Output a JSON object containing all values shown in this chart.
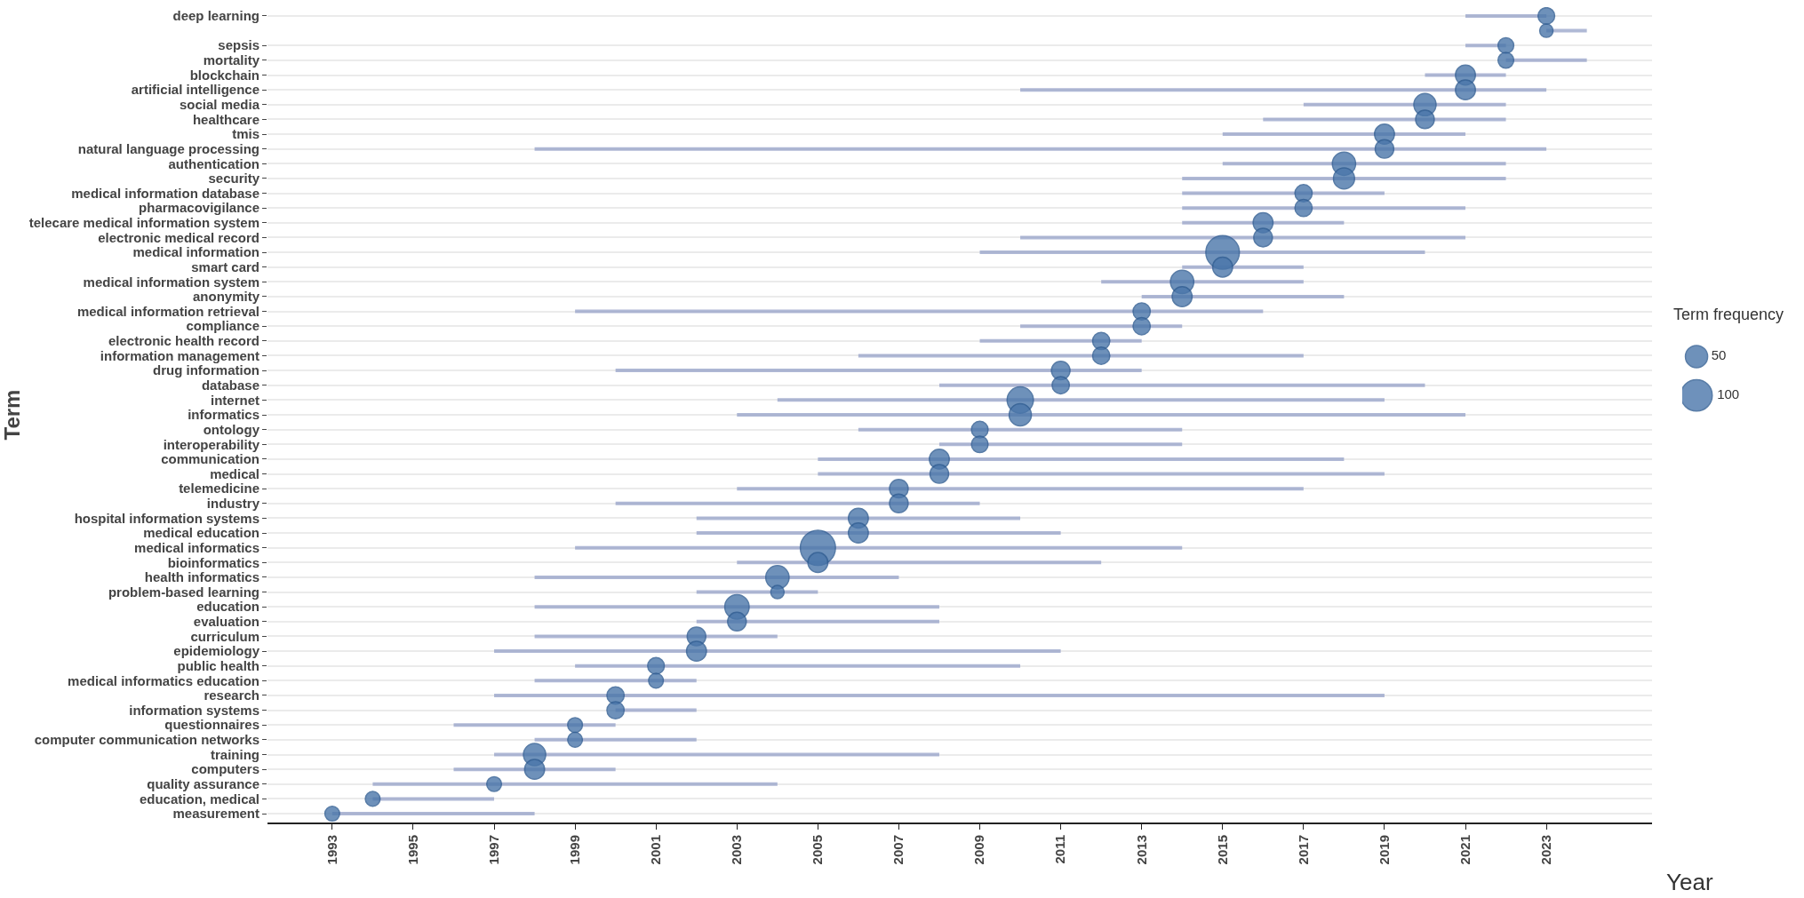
{
  "chart_data": {
    "type": "bubble",
    "orientation": "horizontal",
    "xlabel": "Year",
    "ylabel": "Term",
    "legend_title": "Term frequency",
    "grid": "y",
    "color": "#4a76aa",
    "categories": [
      "deep learning",
      null,
      "sepsis",
      "mortality",
      "blockchain",
      "artificial intelligence",
      "social media",
      "healthcare",
      "tmis",
      "natural language processing",
      "authentication",
      "security",
      "medical information database",
      "pharmacovigilance",
      "telecare medical information system",
      "electronic medical record",
      "medical information",
      "smart card",
      "medical information system",
      "anonymity",
      "medical information retrieval",
      "compliance",
      "electronic health record",
      "information management",
      "drug information",
      "database",
      "internet",
      "informatics",
      "ontology",
      "interoperability",
      "communication",
      "medical",
      "telemedicine",
      "industry",
      "hospital information systems",
      "medical education",
      "medical informatics",
      "bioinformatics",
      "health informatics",
      "problem-based learning",
      "education",
      "evaluation",
      "curriculum",
      "epidemiology",
      "public health",
      "medical informatics education",
      "research",
      "information systems",
      "questionnaires",
      "computer communication networks",
      "training",
      "computers",
      "quality assurance",
      "education, medical",
      "measurement"
    ],
    "values": [
      2023,
      2023,
      2022,
      2022,
      2021,
      2021,
      2020,
      2020,
      2019,
      2019,
      2018,
      2018,
      2017,
      2017,
      2016,
      2016,
      2015,
      2015,
      2014,
      2014,
      2013,
      2013,
      2012,
      2012,
      2011,
      2011,
      2010,
      2010,
      2009,
      2009,
      2008,
      2008,
      2007,
      2007,
      2006,
      2006,
      2005,
      2005,
      2004,
      2004,
      2003,
      2003,
      2002,
      2002,
      2001,
      2001,
      2000,
      2000,
      1999,
      1999,
      1998,
      1998,
      1997,
      1994,
      1993
    ],
    "errors": [
      [
        2021,
        2023
      ],
      [
        2023,
        2024
      ],
      [
        2021,
        2022
      ],
      [
        2022,
        2024
      ],
      [
        2020,
        2022
      ],
      [
        2010,
        2023
      ],
      [
        2017,
        2022
      ],
      [
        2016,
        2022
      ],
      [
        2015,
        2021
      ],
      [
        1998,
        2023
      ],
      [
        2015,
        2022
      ],
      [
        2014,
        2022
      ],
      [
        2014,
        2019
      ],
      [
        2014,
        2021
      ],
      [
        2014,
        2018
      ],
      [
        2010,
        2021
      ],
      [
        2009,
        2020
      ],
      [
        2014,
        2017
      ],
      [
        2012,
        2017
      ],
      [
        2013,
        2018
      ],
      [
        1999,
        2016
      ],
      [
        2010,
        2014
      ],
      [
        2009,
        2013
      ],
      [
        2006,
        2017
      ],
      [
        2000,
        2013
      ],
      [
        2008,
        2020
      ],
      [
        2004,
        2019
      ],
      [
        2003,
        2021
      ],
      [
        2006,
        2014
      ],
      [
        2008,
        2014
      ],
      [
        2005,
        2018
      ],
      [
        2005,
        2019
      ],
      [
        2003,
        2017
      ],
      [
        2000,
        2009
      ],
      [
        2002,
        2010
      ],
      [
        2002,
        2011
      ],
      [
        1999,
        2014
      ],
      [
        2003,
        2012
      ],
      [
        1998,
        2007
      ],
      [
        2002,
        2005
      ],
      [
        1998,
        2008
      ],
      [
        2002,
        2008
      ],
      [
        1998,
        2004
      ],
      [
        1997,
        2011
      ],
      [
        1999,
        2010
      ],
      [
        1998,
        2002
      ],
      [
        1997,
        2019
      ],
      [
        2000,
        2002
      ],
      [
        1996,
        2000
      ],
      [
        1998,
        2002
      ],
      [
        1997,
        2008
      ],
      [
        1996,
        2000
      ],
      [
        1994,
        2004
      ],
      [
        1994,
        1997
      ],
      [
        1993,
        1998
      ]
    ],
    "sizes": [
      28,
      18,
      25,
      25,
      40,
      40,
      50,
      35,
      40,
      35,
      55,
      45,
      30,
      30,
      40,
      35,
      114,
      40,
      55,
      40,
      30,
      30,
      30,
      30,
      35,
      30,
      70,
      50,
      28,
      28,
      40,
      35,
      35,
      35,
      40,
      40,
      125,
      40,
      55,
      18,
      60,
      35,
      35,
      40,
      28,
      22,
      30,
      30,
      22,
      22,
      50,
      40,
      22,
      22,
      22
    ],
    "size_legend": [
      50,
      100
    ],
    "xlim": [
      1991.4,
      2025.6
    ],
    "xticks": [
      1993,
      1995,
      1997,
      1999,
      2001,
      2003,
      2005,
      2007,
      2009,
      2011,
      2013,
      2015,
      2017,
      2019,
      2021,
      2023
    ]
  }
}
